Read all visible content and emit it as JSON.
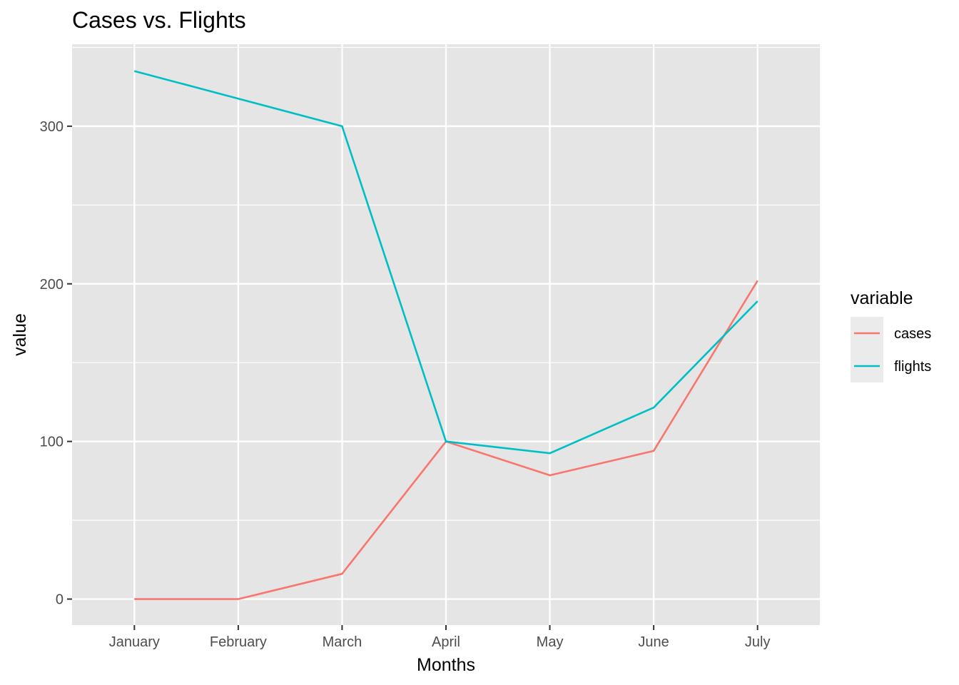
{
  "chart_data": {
    "type": "line",
    "title": "Cases vs. Flights",
    "xlabel": "Months",
    "ylabel": "value",
    "categories": [
      "January",
      "February",
      "March",
      "April",
      "May",
      "June",
      "July"
    ],
    "y_ticks": [
      0,
      100,
      200,
      300
    ],
    "ylim": [
      -16.5,
      352
    ],
    "grid": true,
    "legend": {
      "title": "variable",
      "position": "right"
    },
    "series": [
      {
        "name": "cases",
        "color": "#F8766D",
        "values": [
          0,
          0,
          16,
          100,
          78.5,
          94,
          202
        ]
      },
      {
        "name": "flights",
        "color": "#00BFC4",
        "values": [
          335,
          317.5,
          300,
          100,
          92.5,
          121.5,
          189
        ]
      }
    ]
  },
  "colors": {
    "panel_background": "#E5E5E5",
    "grid_line": "#FFFFFF",
    "legend_key_background": "#EBEBEB"
  }
}
